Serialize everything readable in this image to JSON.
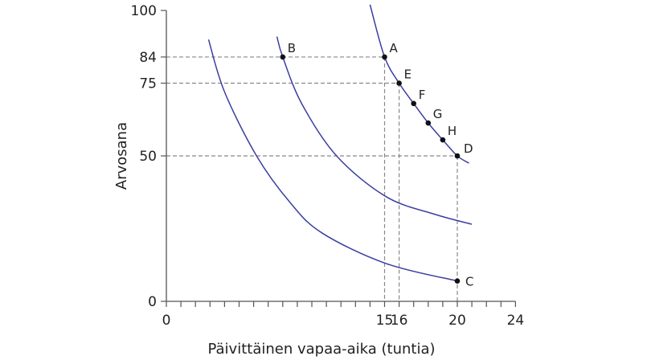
{
  "chart_data": {
    "type": "line",
    "title": "",
    "xlabel": "Päivittäinen vapaa-aika (tuntia)",
    "ylabel": "Arvosana",
    "xlim": [
      0,
      24
    ],
    "ylim": [
      0,
      100
    ],
    "x_ticks": [
      0,
      15,
      16,
      20,
      24
    ],
    "x_minor_tick_step": 1,
    "y_ticks": [
      0,
      50,
      75,
      84,
      100
    ],
    "grid": false,
    "colors": {
      "curve": "#3a3fa0",
      "axis": "#555555",
      "guide": "#888888",
      "point": "#111111"
    },
    "series": [
      {
        "points": [
          [
            2.9,
            90
          ],
          [
            4,
            72
          ],
          [
            6.2,
            50
          ],
          [
            8.5,
            34
          ],
          [
            10.7,
            23.5
          ],
          [
            15.1,
            13
          ],
          [
            20,
            7
          ]
        ]
      },
      {
        "points": [
          [
            7.6,
            91
          ],
          [
            8,
            84
          ],
          [
            9.3,
            68
          ],
          [
            11.7,
            50
          ],
          [
            15.1,
            36
          ],
          [
            18.4,
            30
          ],
          [
            21,
            26.5
          ]
        ]
      },
      {
        "points": [
          [
            14,
            102
          ],
          [
            15,
            84
          ],
          [
            16,
            75
          ],
          [
            17,
            68
          ],
          [
            18,
            61.3
          ],
          [
            19,
            55.5
          ],
          [
            20,
            50
          ],
          [
            20.8,
            47.5
          ]
        ]
      }
    ],
    "labeled_points": [
      {
        "label": "A",
        "x": 15,
        "y": 84
      },
      {
        "label": "B",
        "x": 8,
        "y": 84
      },
      {
        "label": "C",
        "x": 20,
        "y": 7
      },
      {
        "label": "D",
        "x": 20,
        "y": 50
      },
      {
        "label": "E",
        "x": 16,
        "y": 75
      },
      {
        "label": "F",
        "x": 17,
        "y": 68
      },
      {
        "label": "G",
        "x": 18,
        "y": 61.3
      },
      {
        "label": "H",
        "x": 19,
        "y": 55.5
      }
    ],
    "guide_lines": [
      {
        "from": [
          0,
          84
        ],
        "to": [
          15,
          84
        ]
      },
      {
        "from": [
          15,
          84
        ],
        "to": [
          15,
          0
        ]
      },
      {
        "from": [
          0,
          75
        ],
        "to": [
          16,
          75
        ]
      },
      {
        "from": [
          16,
          75
        ],
        "to": [
          16,
          0
        ]
      },
      {
        "from": [
          0,
          50
        ],
        "to": [
          20,
          50
        ]
      },
      {
        "from": [
          20,
          50
        ],
        "to": [
          20,
          0
        ]
      }
    ]
  }
}
